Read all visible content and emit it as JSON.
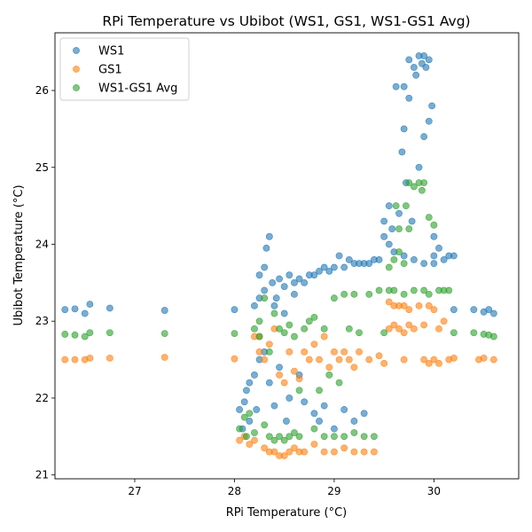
{
  "chart_data": {
    "type": "scatter",
    "title": "RPi Temperature vs Ubibot (WS1, GS1, WS1-GS1 Avg)",
    "xlabel": "RPi Temperature (°C)",
    "ylabel": "Ubibot Temperature (°C)",
    "xlim": [
      26.2,
      30.85
    ],
    "ylim": [
      20.95,
      26.75
    ],
    "xticks": [
      27,
      28,
      29,
      30
    ],
    "yticks": [
      21,
      22,
      23,
      24,
      25,
      26
    ],
    "grid": false,
    "legend_position": "top-left",
    "series": [
      {
        "name": "WS1",
        "color": "#1f77b4",
        "points": [
          [
            26.3,
            23.15
          ],
          [
            26.4,
            23.16
          ],
          [
            26.5,
            23.1
          ],
          [
            26.55,
            23.22
          ],
          [
            26.75,
            23.17
          ],
          [
            27.3,
            23.14
          ],
          [
            28.0,
            23.15
          ],
          [
            28.05,
            21.85
          ],
          [
            28.08,
            21.6
          ],
          [
            28.1,
            21.95
          ],
          [
            28.12,
            22.1
          ],
          [
            28.15,
            22.2
          ],
          [
            28.15,
            21.7
          ],
          [
            28.2,
            22.3
          ],
          [
            28.2,
            23.2
          ],
          [
            28.22,
            21.85
          ],
          [
            28.25,
            22.5
          ],
          [
            28.25,
            23.3
          ],
          [
            28.25,
            23.6
          ],
          [
            28.3,
            22.6
          ],
          [
            28.3,
            23.4
          ],
          [
            28.3,
            23.7
          ],
          [
            28.32,
            23.95
          ],
          [
            28.35,
            22.2
          ],
          [
            28.35,
            24.1
          ],
          [
            28.38,
            23.5
          ],
          [
            28.4,
            23.2
          ],
          [
            28.4,
            21.9
          ],
          [
            28.42,
            23.3
          ],
          [
            28.45,
            23.55
          ],
          [
            28.45,
            22.4
          ],
          [
            28.5,
            23.1
          ],
          [
            28.5,
            23.45
          ],
          [
            28.52,
            21.7
          ],
          [
            28.55,
            23.6
          ],
          [
            28.55,
            22.0
          ],
          [
            28.6,
            23.5
          ],
          [
            28.6,
            23.35
          ],
          [
            28.65,
            23.55
          ],
          [
            28.65,
            22.3
          ],
          [
            28.7,
            23.5
          ],
          [
            28.7,
            21.95
          ],
          [
            28.75,
            23.6
          ],
          [
            28.8,
            23.6
          ],
          [
            28.8,
            21.8
          ],
          [
            28.85,
            23.65
          ],
          [
            28.85,
            21.7
          ],
          [
            28.9,
            23.7
          ],
          [
            28.9,
            21.9
          ],
          [
            28.95,
            23.65
          ],
          [
            29.0,
            23.7
          ],
          [
            29.0,
            21.6
          ],
          [
            29.05,
            23.85
          ],
          [
            29.1,
            23.7
          ],
          [
            29.1,
            21.85
          ],
          [
            29.15,
            23.8
          ],
          [
            29.2,
            23.75
          ],
          [
            29.2,
            21.7
          ],
          [
            29.25,
            23.75
          ],
          [
            29.3,
            23.75
          ],
          [
            29.3,
            21.8
          ],
          [
            29.35,
            23.75
          ],
          [
            29.4,
            23.8
          ],
          [
            29.45,
            23.8
          ],
          [
            29.5,
            24.1
          ],
          [
            29.5,
            24.3
          ],
          [
            29.55,
            24.0
          ],
          [
            29.55,
            24.5
          ],
          [
            29.58,
            24.2
          ],
          [
            29.6,
            23.9
          ],
          [
            29.62,
            26.05
          ],
          [
            29.65,
            24.4
          ],
          [
            29.68,
            25.2
          ],
          [
            29.7,
            25.5
          ],
          [
            29.7,
            26.05
          ],
          [
            29.72,
            24.8
          ],
          [
            29.75,
            25.9
          ],
          [
            29.75,
            26.4
          ],
          [
            29.78,
            24.3
          ],
          [
            29.8,
            26.3
          ],
          [
            29.82,
            26.2
          ],
          [
            29.85,
            26.45
          ],
          [
            29.85,
            25.0
          ],
          [
            29.88,
            26.35
          ],
          [
            29.9,
            26.45
          ],
          [
            29.9,
            25.4
          ],
          [
            29.92,
            26.3
          ],
          [
            29.95,
            26.4
          ],
          [
            29.95,
            25.6
          ],
          [
            29.98,
            25.8
          ],
          [
            30.0,
            24.1
          ],
          [
            30.0,
            23.85
          ],
          [
            30.05,
            23.95
          ],
          [
            30.1,
            23.8
          ],
          [
            30.15,
            23.85
          ],
          [
            30.2,
            23.85
          ],
          [
            30.2,
            23.15
          ],
          [
            30.4,
            23.15
          ],
          [
            30.5,
            23.12
          ],
          [
            30.55,
            23.15
          ],
          [
            30.6,
            23.1
          ],
          [
            29.8,
            23.8
          ],
          [
            29.9,
            23.75
          ],
          [
            30.0,
            23.75
          ],
          [
            29.7,
            23.85
          ]
        ]
      },
      {
        "name": "GS1",
        "color": "#ff7f0e",
        "points": [
          [
            26.3,
            22.5
          ],
          [
            26.4,
            22.5
          ],
          [
            26.5,
            22.5
          ],
          [
            26.55,
            22.52
          ],
          [
            26.75,
            22.52
          ],
          [
            27.3,
            22.53
          ],
          [
            28.0,
            22.51
          ],
          [
            28.05,
            21.45
          ],
          [
            28.1,
            21.5
          ],
          [
            28.15,
            21.4
          ],
          [
            28.2,
            21.45
          ],
          [
            28.2,
            22.8
          ],
          [
            28.25,
            22.6
          ],
          [
            28.25,
            22.8
          ],
          [
            28.3,
            21.35
          ],
          [
            28.3,
            22.5
          ],
          [
            28.35,
            21.3
          ],
          [
            28.35,
            22.7
          ],
          [
            28.4,
            21.3
          ],
          [
            28.4,
            22.9
          ],
          [
            28.45,
            21.25
          ],
          [
            28.45,
            22.3
          ],
          [
            28.5,
            21.25
          ],
          [
            28.5,
            22.2
          ],
          [
            28.55,
            21.3
          ],
          [
            28.55,
            22.6
          ],
          [
            28.6,
            21.35
          ],
          [
            28.6,
            22.35
          ],
          [
            28.65,
            21.3
          ],
          [
            28.65,
            22.25
          ],
          [
            28.7,
            21.3
          ],
          [
            28.7,
            22.6
          ],
          [
            28.75,
            22.5
          ],
          [
            28.8,
            21.4
          ],
          [
            28.8,
            22.7
          ],
          [
            28.85,
            22.5
          ],
          [
            28.9,
            21.3
          ],
          [
            28.9,
            22.8
          ],
          [
            28.95,
            22.4
          ],
          [
            29.0,
            21.3
          ],
          [
            29.0,
            22.6
          ],
          [
            29.05,
            22.5
          ],
          [
            29.1,
            21.35
          ],
          [
            29.1,
            22.6
          ],
          [
            29.15,
            22.5
          ],
          [
            29.2,
            21.3
          ],
          [
            29.2,
            22.4
          ],
          [
            29.25,
            22.6
          ],
          [
            29.3,
            21.3
          ],
          [
            29.35,
            22.5
          ],
          [
            29.4,
            21.3
          ],
          [
            29.45,
            22.55
          ],
          [
            29.5,
            22.45
          ],
          [
            29.55,
            22.9
          ],
          [
            29.55,
            23.25
          ],
          [
            29.6,
            23.2
          ],
          [
            29.65,
            22.9
          ],
          [
            29.65,
            23.2
          ],
          [
            29.7,
            22.5
          ],
          [
            29.7,
            23.2
          ],
          [
            29.75,
            22.95
          ],
          [
            29.75,
            23.15
          ],
          [
            29.8,
            22.9
          ],
          [
            29.85,
            23.2
          ],
          [
            29.9,
            22.5
          ],
          [
            29.9,
            22.95
          ],
          [
            29.95,
            22.45
          ],
          [
            29.95,
            23.2
          ],
          [
            30.0,
            22.5
          ],
          [
            30.0,
            23.15
          ],
          [
            30.05,
            22.45
          ],
          [
            30.05,
            22.9
          ],
          [
            30.1,
            23.0
          ],
          [
            30.15,
            22.5
          ],
          [
            30.2,
            22.52
          ],
          [
            30.45,
            22.5
          ],
          [
            30.5,
            22.52
          ],
          [
            30.6,
            22.5
          ],
          [
            29.6,
            22.95
          ],
          [
            29.7,
            22.85
          ]
        ]
      },
      {
        "name": "WS1-GS1 Avg",
        "color": "#2ca02c",
        "points": [
          [
            26.3,
            22.83
          ],
          [
            26.4,
            22.82
          ],
          [
            26.5,
            22.8
          ],
          [
            26.55,
            22.85
          ],
          [
            26.75,
            22.85
          ],
          [
            27.3,
            22.84
          ],
          [
            28.0,
            22.84
          ],
          [
            28.05,
            21.6
          ],
          [
            28.1,
            21.75
          ],
          [
            28.12,
            21.5
          ],
          [
            28.15,
            21.8
          ],
          [
            28.2,
            21.55
          ],
          [
            28.2,
            22.9
          ],
          [
            28.25,
            23.0
          ],
          [
            28.25,
            22.8
          ],
          [
            28.3,
            21.65
          ],
          [
            28.3,
            23.3
          ],
          [
            28.35,
            21.5
          ],
          [
            28.35,
            22.6
          ],
          [
            28.4,
            21.45
          ],
          [
            28.4,
            23.1
          ],
          [
            28.45,
            21.5
          ],
          [
            28.45,
            22.9
          ],
          [
            28.5,
            21.45
          ],
          [
            28.5,
            22.85
          ],
          [
            28.55,
            21.5
          ],
          [
            28.55,
            22.95
          ],
          [
            28.6,
            21.55
          ],
          [
            28.6,
            22.8
          ],
          [
            28.65,
            21.5
          ],
          [
            28.65,
            22.1
          ],
          [
            28.7,
            22.9
          ],
          [
            28.75,
            23.0
          ],
          [
            28.8,
            21.6
          ],
          [
            28.8,
            23.05
          ],
          [
            28.85,
            22.1
          ],
          [
            28.9,
            21.5
          ],
          [
            28.9,
            22.9
          ],
          [
            28.95,
            22.3
          ],
          [
            29.0,
            21.5
          ],
          [
            29.0,
            23.3
          ],
          [
            29.05,
            22.2
          ],
          [
            29.1,
            21.5
          ],
          [
            29.1,
            23.35
          ],
          [
            29.15,
            22.9
          ],
          [
            29.2,
            21.55
          ],
          [
            29.2,
            23.35
          ],
          [
            29.25,
            22.85
          ],
          [
            29.3,
            21.5
          ],
          [
            29.35,
            23.35
          ],
          [
            29.4,
            21.5
          ],
          [
            29.45,
            23.4
          ],
          [
            29.5,
            22.85
          ],
          [
            29.55,
            23.7
          ],
          [
            29.55,
            23.4
          ],
          [
            29.6,
            23.8
          ],
          [
            29.62,
            24.5
          ],
          [
            29.65,
            23.9
          ],
          [
            29.65,
            24.2
          ],
          [
            29.7,
            23.35
          ],
          [
            29.72,
            24.5
          ],
          [
            29.75,
            24.2
          ],
          [
            29.75,
            24.8
          ],
          [
            29.8,
            23.4
          ],
          [
            29.8,
            24.75
          ],
          [
            29.85,
            24.8
          ],
          [
            29.88,
            24.7
          ],
          [
            29.9,
            24.8
          ],
          [
            29.9,
            23.4
          ],
          [
            29.95,
            24.35
          ],
          [
            29.95,
            23.35
          ],
          [
            30.0,
            24.25
          ],
          [
            30.05,
            23.4
          ],
          [
            30.1,
            23.4
          ],
          [
            30.15,
            23.4
          ],
          [
            30.2,
            22.85
          ],
          [
            30.4,
            22.85
          ],
          [
            30.5,
            22.83
          ],
          [
            30.55,
            22.82
          ],
          [
            30.6,
            22.8
          ],
          [
            29.6,
            23.4
          ],
          [
            29.7,
            23.75
          ]
        ]
      }
    ]
  }
}
